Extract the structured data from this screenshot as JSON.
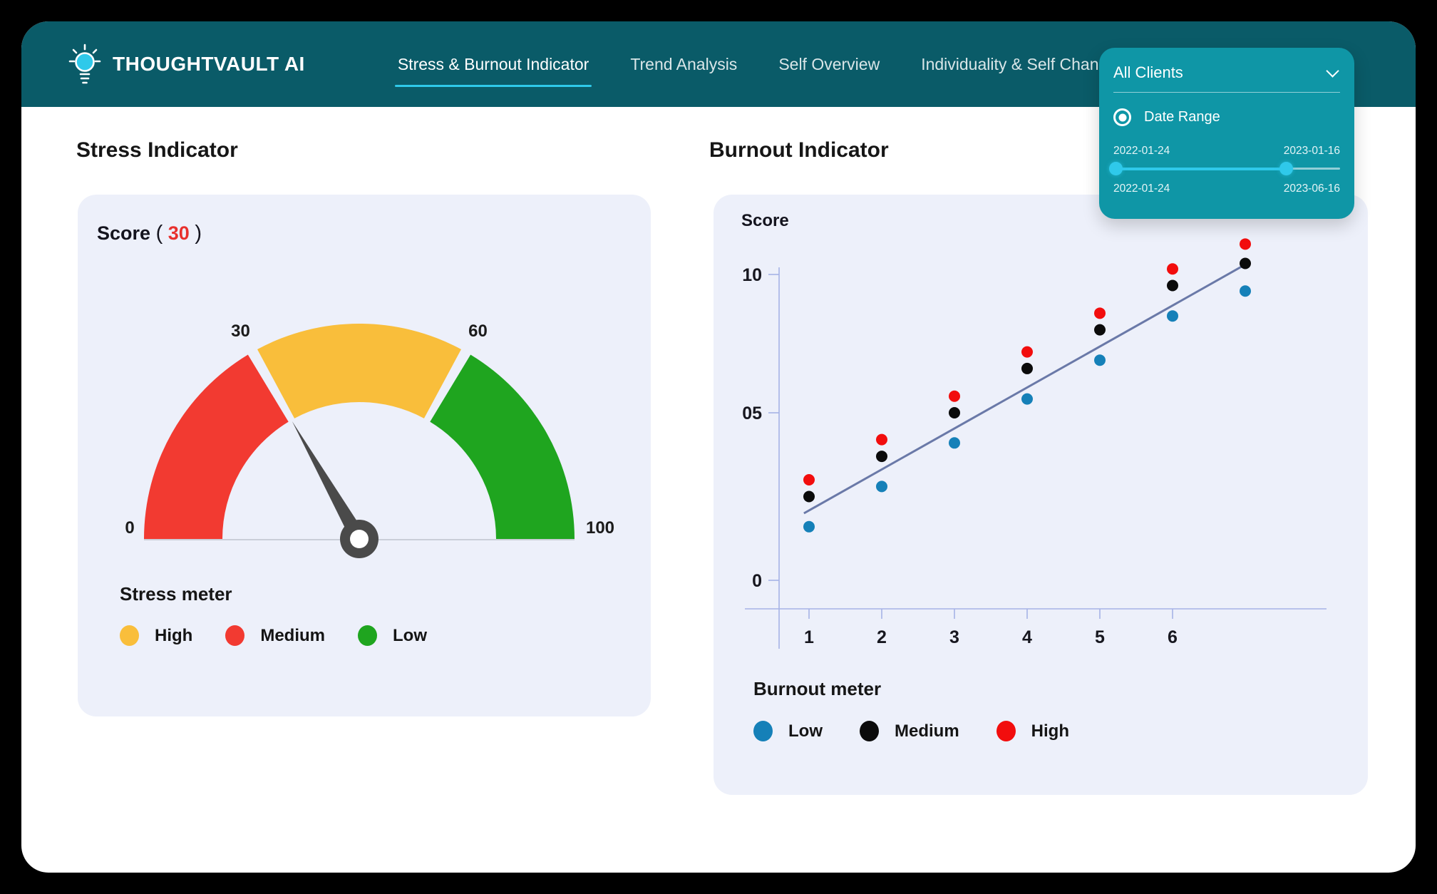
{
  "colors": {
    "header_teal": "#0a5b68",
    "panel_teal": "#0f96a6",
    "accent_cyan": "#2fc9ea",
    "card_bg": "#edf0fa",
    "gauge_red": "#f23a31",
    "gauge_yellow": "#f9be3b",
    "gauge_green": "#1fa51f",
    "scatter_blue": "#1580b8",
    "scatter_black": "#0b0b0b",
    "scatter_red": "#f20d0d",
    "trend_line": "#6a79a8",
    "axis": "#a6b3e6",
    "score_red": "#e8302d"
  },
  "header": {
    "brand": "THOUGHTVAULT AI"
  },
  "nav": {
    "items": [
      {
        "label": "Stress & Burnout Indicator",
        "active": true
      },
      {
        "label": "Trend Analysis",
        "active": false
      },
      {
        "label": "Self Overview",
        "active": false
      },
      {
        "label": "Individuality & Self Change",
        "active": false
      }
    ]
  },
  "filter": {
    "client_selector": "All Clients",
    "date_range_label": "Date Range",
    "selected_start": "2022-01-24",
    "selected_end": "2023-01-16",
    "range_min": "2022-01-24",
    "range_max": "2023-06-16"
  },
  "stress": {
    "title": "Stress Indicator",
    "score_label": "Score",
    "paren_open": "(",
    "score_value": "30",
    "paren_close": ")",
    "legend_title": "Stress meter",
    "legend": [
      {
        "label": "High",
        "color": "#f9be3b"
      },
      {
        "label": "Medium",
        "color": "#f23a31"
      },
      {
        "label": "Low",
        "color": "#1fa51f"
      }
    ]
  },
  "burnout": {
    "title": "Burnout Indicator",
    "axis_label": "Score",
    "legend_title": "Burnout meter",
    "legend": [
      {
        "label": "Low",
        "color": "#1580b8"
      },
      {
        "label": "Medium",
        "color": "#0b0b0b"
      },
      {
        "label": "High",
        "color": "#f20d0d"
      }
    ]
  },
  "chart_data": [
    {
      "type": "gauge",
      "title": "Stress Indicator",
      "value": 30,
      "min": 0,
      "max": 100,
      "segments": [
        {
          "label": "Medium",
          "color": "#f23a31",
          "from": 0,
          "to": 30
        },
        {
          "label": "High",
          "color": "#f9be3b",
          "from": 30,
          "to": 60
        },
        {
          "label": "Low",
          "color": "#1fa51f",
          "from": 60,
          "to": 100
        }
      ],
      "tick_labels": {
        "min": "0",
        "boundary1": "30",
        "boundary2": "60",
        "max": "100"
      },
      "display": {
        "b1_frac": 0.335,
        "b2_frac": 0.665,
        "needle_frac": 0.335,
        "gap_frac": 0.008
      }
    },
    {
      "type": "scatter",
      "title": "Burnout Indicator",
      "xlabel": "",
      "ylabel": "Score",
      "x": [
        1,
        2,
        3,
        4,
        5,
        6,
        7
      ],
      "x_tick_labels": [
        "1",
        "2",
        "3",
        "4",
        "5",
        "6"
      ],
      "y_ticks": [
        {
          "label": "0",
          "value": 0
        },
        {
          "label": "05",
          "value": 5
        },
        {
          "label": "10",
          "value": 10
        }
      ],
      "ylim": [
        0,
        11.5
      ],
      "series": [
        {
          "name": "Low",
          "color": "#1580b8",
          "values": [
            1.6,
            2.8,
            4.1,
            5.5,
            6.9,
            8.5,
            9.4
          ]
        },
        {
          "name": "Medium",
          "color": "#0b0b0b",
          "values": [
            2.5,
            3.7,
            5.0,
            6.6,
            8.0,
            9.6,
            10.4
          ]
        },
        {
          "name": "High",
          "color": "#f20d0d",
          "values": [
            3.0,
            4.2,
            5.6,
            7.2,
            8.6,
            10.2,
            11.1
          ]
        }
      ],
      "trend_line": {
        "color": "#6a79a8",
        "x1": 0.93,
        "y1": 2.0,
        "x2": 6.96,
        "y2": 10.3
      },
      "grid": false,
      "legend_position": "bottom"
    }
  ]
}
